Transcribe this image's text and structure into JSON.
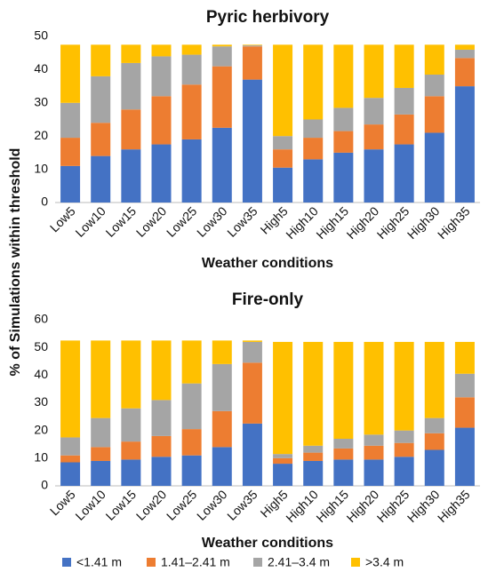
{
  "chart_data": [
    {
      "type": "stacked_bar",
      "title": "Pyric herbivory",
      "ylabel": "% of Simulations within threshold",
      "xlabel": "Weather conditions",
      "categories": [
        "Low5",
        "Low10",
        "Low15",
        "Low20",
        "Low25",
        "Low30",
        "Low35",
        "High5",
        "High10",
        "High15",
        "High20",
        "High25",
        "High30",
        "High35"
      ],
      "ylim": [
        0,
        50
      ],
      "yticks": [
        0,
        10,
        20,
        30,
        40,
        50
      ],
      "series": [
        {
          "name": "<1.41 m",
          "color": "#4472c4",
          "values": [
            11,
            14,
            16,
            17.5,
            19,
            22.5,
            37,
            10.5,
            13,
            15,
            16,
            17.5,
            21,
            35
          ]
        },
        {
          "name": "1.41–2.41 m",
          "color": "#ed7d31",
          "values": [
            8.5,
            10,
            12,
            14.5,
            16.5,
            18.5,
            10,
            5.5,
            6.5,
            6.5,
            7.5,
            9,
            11,
            8.5
          ]
        },
        {
          "name": "2.41–3.4 m",
          "color": "#a5a5a5",
          "values": [
            10.5,
            14,
            14,
            12,
            9,
            6,
            0.3,
            4,
            5.5,
            7,
            8,
            8,
            6.5,
            2.5
          ]
        },
        {
          "name": ">3.4 m",
          "color": "#ffc000",
          "values": [
            17.5,
            9.5,
            5.5,
            3.5,
            3,
            0.5,
            0.2,
            27.5,
            22.5,
            19,
            16,
            13,
            9,
            1.5
          ]
        }
      ]
    },
    {
      "type": "stacked_bar",
      "title": "Fire-only",
      "xlabel": "Weather conditions",
      "categories": [
        "Low5",
        "Low10",
        "Low15",
        "Low20",
        "Low25",
        "Low30",
        "Low35",
        "High5",
        "High10",
        "High15",
        "High20",
        "High25",
        "High30",
        "High35"
      ],
      "ylim": [
        0,
        60
      ],
      "yticks": [
        0,
        10,
        20,
        30,
        40,
        50,
        60
      ],
      "series": [
        {
          "name": "<1.41 m",
          "color": "#4472c4",
          "values": [
            8.5,
            9,
            9.5,
            10.5,
            11,
            14,
            22.5,
            8,
            9,
            9.5,
            9.5,
            10.5,
            13,
            21
          ]
        },
        {
          "name": "1.41–2.41 m",
          "color": "#ed7d31",
          "values": [
            2.5,
            5,
            6.5,
            7.5,
            9.5,
            13,
            22,
            2,
            3,
            4,
            5,
            5,
            6,
            11
          ]
        },
        {
          "name": "2.41–3.4 m",
          "color": "#a5a5a5",
          "values": [
            6.5,
            10.5,
            12,
            13,
            16.5,
            17,
            7.5,
            1.5,
            2.5,
            3.5,
            4,
            4.5,
            5.5,
            8.5
          ]
        },
        {
          "name": ">3.4 m",
          "color": "#ffc000",
          "values": [
            35,
            28,
            24.5,
            21.5,
            15.5,
            8.5,
            0.5,
            40.5,
            37.5,
            35,
            33.5,
            32,
            27.5,
            11.5
          ]
        }
      ]
    }
  ]
}
